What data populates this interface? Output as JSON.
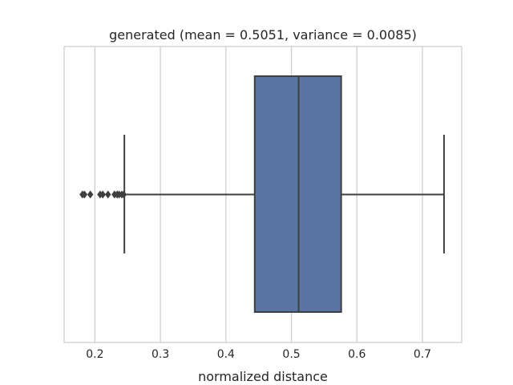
{
  "chart_data": {
    "type": "box",
    "orientation": "horizontal",
    "title": "generated (mean = 0.5051, variance = 0.0085)",
    "xlabel": "normalized distance",
    "ylabel": "",
    "xlim": [
      0.153,
      0.76
    ],
    "xticks": [
      0.2,
      0.3,
      0.4,
      0.5,
      0.6,
      0.7
    ],
    "xtick_labels": [
      "0.2",
      "0.3",
      "0.4",
      "0.5",
      "0.6",
      "0.7"
    ],
    "grid": "vertical",
    "series": [
      {
        "whisker_low": 0.245,
        "q1": 0.444,
        "median": 0.511,
        "q3": 0.576,
        "whisker_high": 0.733,
        "outliers": [
          0.181,
          0.184,
          0.193,
          0.208,
          0.212,
          0.22,
          0.23,
          0.234,
          0.237,
          0.241,
          0.244
        ]
      }
    ],
    "colors": {
      "box_fill": "#5975a4",
      "line": "#3f3f3f",
      "grid": "#cccccc",
      "frame": "#cccccc",
      "background": "#ffffff"
    }
  }
}
